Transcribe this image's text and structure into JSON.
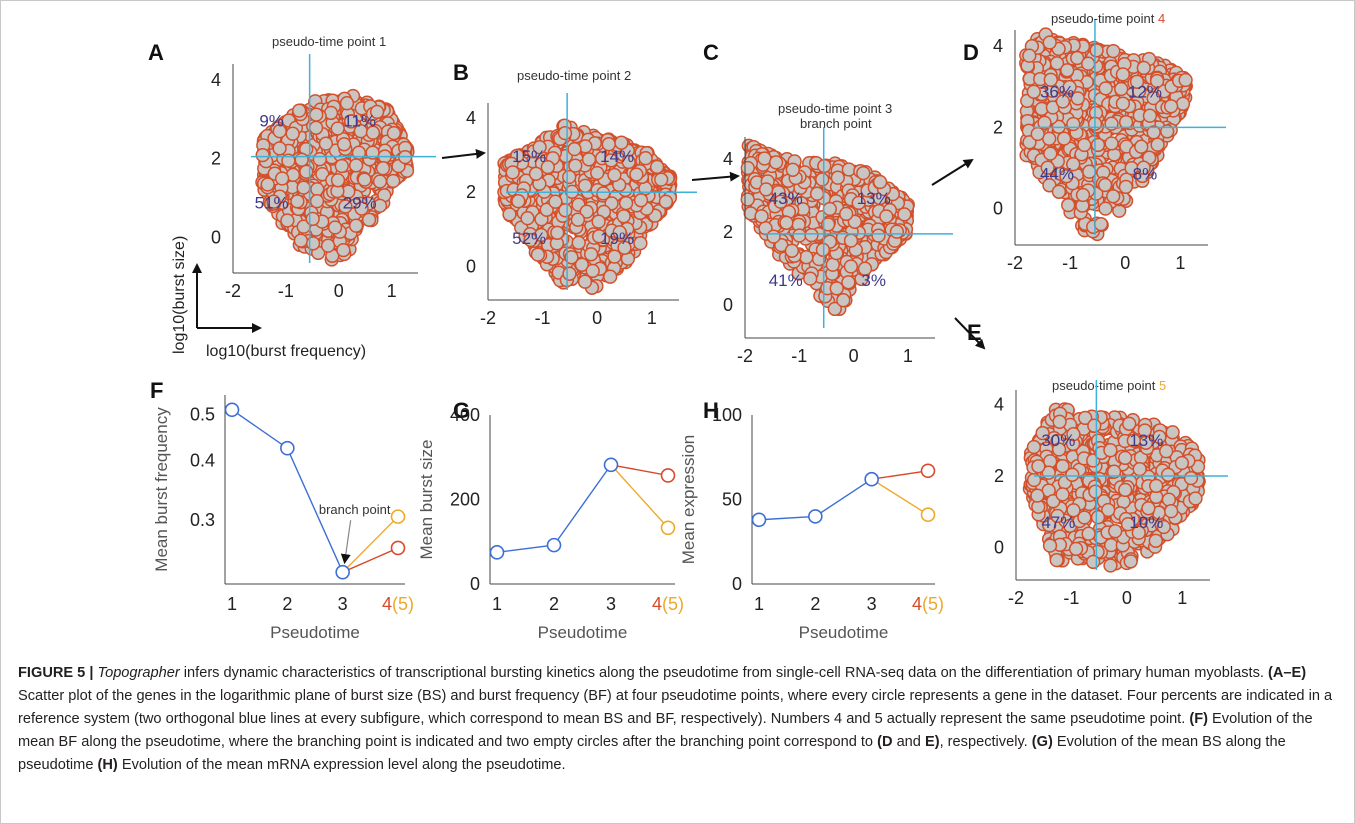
{
  "figure": {
    "colors": {
      "point_fill": "#c9c5c2",
      "point_stroke": "#d4502b",
      "crosshair": "#3fb1d9",
      "percent_text": "#3d3a8c",
      "branch_green": "#33aa44",
      "series_blue": "#3c6fd6",
      "series_red": "#d84a2b",
      "series_yellow": "#eea928"
    },
    "key": {
      "x_label": "log10(burst frequency)",
      "y_label": "log10(burst size)"
    }
  },
  "chart_data": [
    {
      "id": "A",
      "type": "scatter",
      "label": "A",
      "title": "pseudo-time point 1",
      "title_suffix": "",
      "xlim": [
        -2,
        1.5
      ],
      "ylim": [
        -0.9,
        4.4
      ],
      "xticks": [
        "-2",
        "-1",
        "0",
        "1"
      ],
      "yticks": [
        "0",
        "2",
        "4"
      ],
      "center": {
        "x": -0.55,
        "y": 2.05
      },
      "cloud": {
        "x": [
          -1.45,
          1.3
        ],
        "y": [
          -0.6,
          3.5
        ],
        "top": [
          [
            -1.45,
            2.5
          ],
          [
            -0.9,
            3.1
          ],
          [
            -0.4,
            3.5
          ],
          [
            0.3,
            3.6
          ],
          [
            0.9,
            3.3
          ],
          [
            1.3,
            2.3
          ]
        ],
        "bottom": [
          [
            -1.45,
            1.2
          ],
          [
            -1.0,
            0.2
          ],
          [
            -0.5,
            -0.6
          ],
          [
            0.0,
            -0.7
          ],
          [
            0.6,
            0.3
          ],
          [
            1.2,
            1.6
          ]
        ]
      },
      "quadrants": [
        "9%",
        "11%",
        "51%",
        "29%"
      ],
      "subtitle": ""
    },
    {
      "id": "B",
      "type": "scatter",
      "label": "B",
      "title": "pseudo-time point 2",
      "title_suffix": "",
      "xlim": [
        -2,
        1.5
      ],
      "ylim": [
        -0.9,
        4.4
      ],
      "xticks": [
        "-2",
        "-1",
        "0",
        "1"
      ],
      "yticks": [
        "0",
        "2",
        "4"
      ],
      "center": {
        "x": -0.55,
        "y": 2.0
      },
      "cloud": {
        "x": [
          -1.7,
          1.35
        ],
        "y": [
          -0.6,
          3.7
        ],
        "top": [
          [
            -1.7,
            2.8
          ],
          [
            -1.2,
            3.2
          ],
          [
            -0.6,
            3.8
          ],
          [
            0.2,
            3.5
          ],
          [
            0.9,
            3.1
          ],
          [
            1.35,
            2.4
          ]
        ],
        "bottom": [
          [
            -1.7,
            1.6
          ],
          [
            -1.2,
            0.5
          ],
          [
            -0.6,
            -0.6
          ],
          [
            0.1,
            -0.6
          ],
          [
            0.7,
            0.4
          ],
          [
            1.3,
            1.7
          ]
        ]
      },
      "quadrants": [
        "15%",
        "14%",
        "52%",
        "19%"
      ],
      "subtitle": ""
    },
    {
      "id": "C",
      "type": "scatter",
      "label": "C",
      "title": "pseudo-time point 3",
      "title_suffix": "",
      "xlim": [
        -2,
        1.5
      ],
      "ylim": [
        -0.9,
        4.6
      ],
      "xticks": [
        "-2",
        "-1",
        "0",
        "1"
      ],
      "yticks": [
        "0",
        "2",
        "4"
      ],
      "center": {
        "x": -0.55,
        "y": 1.95
      },
      "cloud": {
        "x": [
          -1.95,
          1.0
        ],
        "y": [
          -0.2,
          4.4
        ],
        "top": [
          [
            -1.95,
            4.4
          ],
          [
            -1.5,
            4.1
          ],
          [
            -0.9,
            3.9
          ],
          [
            -0.3,
            3.9
          ],
          [
            0.3,
            3.6
          ],
          [
            1.0,
            2.8
          ]
        ],
        "bottom": [
          [
            -1.95,
            2.6
          ],
          [
            -1.5,
            1.6
          ],
          [
            -0.9,
            0.6
          ],
          [
            -0.3,
            -0.2
          ],
          [
            0.3,
            1.0
          ],
          [
            1.0,
            2.0
          ]
        ]
      },
      "quadrants": [
        "43%",
        "13%",
        "41%",
        "3%"
      ],
      "subtitle": "branch point"
    },
    {
      "id": "D",
      "type": "scatter",
      "label": "D",
      "title": "pseudo-time point ",
      "title_suffix": "4",
      "xlim": [
        -2,
        1.5
      ],
      "ylim": [
        -0.9,
        4.4
      ],
      "xticks": [
        "-2",
        "-1",
        "0",
        "1"
      ],
      "yticks": [
        "0",
        "2",
        "4"
      ],
      "center": {
        "x": -0.55,
        "y": 2.0
      },
      "cloud": {
        "x": [
          -1.8,
          1.1
        ],
        "y": [
          -0.8,
          4.4
        ],
        "top": [
          [
            -1.8,
            3.8
          ],
          [
            -1.6,
            4.4
          ],
          [
            -1.0,
            4.1
          ],
          [
            -0.3,
            3.9
          ],
          [
            0.5,
            3.7
          ],
          [
            1.1,
            3.2
          ]
        ],
        "bottom": [
          [
            -1.8,
            1.3
          ],
          [
            -1.3,
            0.4
          ],
          [
            -0.6,
            -0.8
          ],
          [
            0.0,
            0.1
          ],
          [
            0.5,
            1.0
          ],
          [
            1.1,
            2.6
          ]
        ]
      },
      "quadrants": [
        "36%",
        "12%",
        "44%",
        "8%"
      ],
      "subtitle": ""
    },
    {
      "id": "E",
      "type": "scatter",
      "label": "E",
      "title": "pseudo-time point ",
      "title_suffix": "5",
      "xlim": [
        -2,
        1.5
      ],
      "ylim": [
        -0.9,
        4.4
      ],
      "xticks": [
        "-2",
        "-1",
        "0",
        "1"
      ],
      "yticks": [
        "0",
        "2",
        "4"
      ],
      "center": {
        "x": -0.55,
        "y": 2.0
      },
      "cloud": {
        "x": [
          -1.75,
          1.3
        ],
        "y": [
          -0.5,
          4.0
        ],
        "top": [
          [
            -1.75,
            2.6
          ],
          [
            -1.3,
            3.9
          ],
          [
            -0.7,
            3.8
          ],
          [
            0.0,
            3.6
          ],
          [
            0.7,
            3.4
          ],
          [
            1.3,
            2.6
          ]
        ],
        "bottom": [
          [
            -1.75,
            1.6
          ],
          [
            -1.3,
            -0.4
          ],
          [
            -0.6,
            -0.5
          ],
          [
            0.0,
            -0.5
          ],
          [
            0.6,
            0.0
          ],
          [
            1.3,
            1.4
          ]
        ]
      },
      "quadrants": [
        "30%",
        "13%",
        "47%",
        "10%"
      ],
      "subtitle": ""
    },
    {
      "id": "F",
      "type": "line",
      "label": "F",
      "ylabel": "Mean burst frequency",
      "xlabel": "Pseudotime",
      "xticks": [
        "1",
        "2",
        "3",
        "4",
        "(5)"
      ],
      "yscale": "log",
      "ylim": [
        0.22,
        0.55
      ],
      "yticks": [
        {
          "v": 0.3,
          "t": "0.3"
        },
        {
          "v": 0.4,
          "t": "0.4"
        },
        {
          "v": 0.5,
          "t": "0.5"
        }
      ],
      "series": [
        {
          "color": "blue",
          "x": [
            1,
            2,
            3
          ],
          "values": [
            0.512,
            0.425,
            0.233
          ]
        },
        {
          "color": "red",
          "x": [
            3,
            4
          ],
          "values": [
            0.233,
            0.262
          ]
        },
        {
          "color": "yellow",
          "x": [
            3,
            4
          ],
          "values": [
            0.233,
            0.305
          ]
        }
      ],
      "annotation": "branch point"
    },
    {
      "id": "G",
      "type": "line",
      "label": "G",
      "ylabel": "Mean burst size",
      "xlabel": "Pseudotime",
      "xticks": [
        "1",
        "2",
        "3",
        "4",
        "(5)"
      ],
      "yscale": "linear",
      "ylim": [
        0,
        400
      ],
      "yticks": [
        {
          "v": 0,
          "t": "0"
        },
        {
          "v": 200,
          "t": "200"
        },
        {
          "v": 400,
          "t": "400"
        }
      ],
      "series": [
        {
          "color": "blue",
          "x": [
            1,
            2,
            3
          ],
          "values": [
            75,
            92,
            282
          ]
        },
        {
          "color": "red",
          "x": [
            3,
            4
          ],
          "values": [
            282,
            257
          ]
        },
        {
          "color": "yellow",
          "x": [
            3,
            4
          ],
          "values": [
            282,
            133
          ]
        }
      ],
      "annotation": ""
    },
    {
      "id": "H",
      "type": "line",
      "label": "H",
      "ylabel": "Mean expression",
      "xlabel": "Pseudotime",
      "xticks": [
        "1",
        "2",
        "3",
        "4",
        "(5)"
      ],
      "yscale": "linear",
      "ylim": [
        0,
        100
      ],
      "yticks": [
        {
          "v": 0,
          "t": "0"
        },
        {
          "v": 50,
          "t": "50"
        },
        {
          "v": 100,
          "t": "100"
        }
      ],
      "series": [
        {
          "color": "blue",
          "x": [
            1,
            2,
            3
          ],
          "values": [
            38,
            40,
            62
          ]
        },
        {
          "color": "red",
          "x": [
            3,
            4
          ],
          "values": [
            62,
            67
          ]
        },
        {
          "color": "yellow",
          "x": [
            3,
            4
          ],
          "values": [
            62,
            41
          ]
        }
      ],
      "annotation": ""
    }
  ],
  "caption": {
    "label": "FIGURE 5 | ",
    "title_italic": "Topographer",
    "title_rest": " infers dynamic characteristics of transcriptional bursting kinetics along the pseudotime from single-cell RNA-seq data on the differentiation of primary human myoblasts. ",
    "s1_ref": "(A–E)",
    "s1": " Scatter plot of the genes in the logarithmic plane of burst size (BS) and burst frequency (BF) at four pseudotime points, where every circle represents a gene in the dataset. Four percents are indicated in a reference system (two orthogonal blue lines at every subfigure, which correspond to mean BS and BF, respectively). Numbers 4 and 5 actually represent the same pseudotime point. ",
    "s2_ref": "(F)",
    "s2": " Evolution of the mean BF along the pseudotime, where the branching point is indicated and two empty circles after the branching point correspond to ",
    "s2_ref2": "(D",
    "s2_and": " and ",
    "s2_ref3": "E)",
    "s2_end": ", respectively. ",
    "s3_ref": "(G)",
    "s3": " Evolution of the mean BS along the pseudotime ",
    "s4_ref": "(H)",
    "s4": " Evolution of the mean mRNA expression level along the pseudotime."
  }
}
